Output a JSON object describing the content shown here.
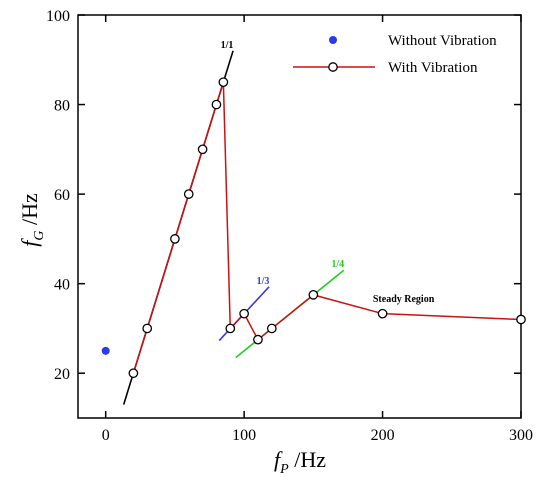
{
  "chart_data": {
    "type": "scatter",
    "xlabel": {
      "main": "f",
      "sub": "P",
      "unit": " /Hz"
    },
    "ylabel": {
      "main": "f",
      "sub": "G",
      "unit": " /Hz"
    },
    "xlim": [
      -20,
      300
    ],
    "ylim": [
      10,
      100
    ],
    "x_ticks": [
      0,
      100,
      200,
      300
    ],
    "y_ticks": [
      20,
      40,
      60,
      80,
      100
    ],
    "grid": false,
    "legend_position": "top-right",
    "series": [
      {
        "name": "Without Vibration",
        "marker": "filled-circle",
        "color": "#2b3be8",
        "points": [
          [
            0,
            25
          ]
        ]
      },
      {
        "name": "With Vibration",
        "marker": "open-circle",
        "marker_color": "#000000",
        "line_color": "#cc1111",
        "points": [
          [
            20,
            20
          ],
          [
            30,
            30
          ],
          [
            50,
            50
          ],
          [
            60,
            60
          ],
          [
            70,
            70
          ],
          [
            80,
            80
          ],
          [
            85,
            85
          ],
          [
            90,
            30
          ],
          [
            100,
            33.3
          ],
          [
            110,
            27.5
          ],
          [
            120,
            30
          ],
          [
            150,
            37.5
          ],
          [
            200,
            33.3
          ],
          [
            300,
            32
          ]
        ]
      }
    ],
    "reference_lines": [
      {
        "label": "1/1",
        "color": "#000000",
        "from": [
          13,
          13
        ],
        "to": [
          92,
          92
        ]
      },
      {
        "label": "1/3",
        "color": "#3a3ae0",
        "from": [
          82,
          27.3
        ],
        "to": [
          118,
          39.3
        ]
      },
      {
        "label": "1/4",
        "color": "#22cc22",
        "from": [
          94,
          23.5
        ],
        "to": [
          172,
          43
        ]
      }
    ],
    "annotations": [
      {
        "text": "Steady Region",
        "x": 193,
        "y": 35.9
      }
    ]
  }
}
